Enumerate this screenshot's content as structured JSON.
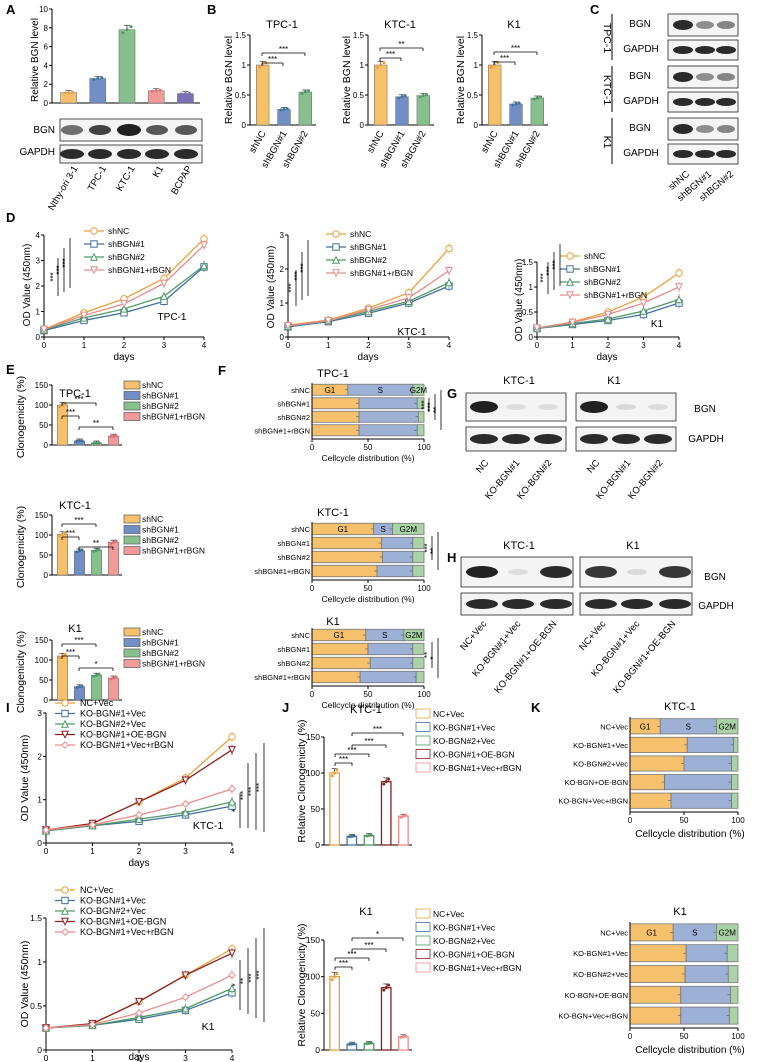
{
  "colors": {
    "shnc": "#f7c06a",
    "sh1": "#6f8fc6",
    "sh2": "#86c08c",
    "rbgn": "#f29a9a",
    "orange": "#e8a03c",
    "blue": "#41729f",
    "green": "#4f9a64",
    "darkred": "#8b1e1e",
    "pink": "#ee8b8b",
    "pinkline": "#e48c8c",
    "purple": "#7c6fb4",
    "teal": "#4aa6a0",
    "red": "#e07070",
    "g1": "#f6c16c",
    "s": "#9db0d6",
    "g2m": "#a9d3a5"
  },
  "panels": {
    "A": "A",
    "B": "B",
    "C": "C",
    "D": "D",
    "E": "E",
    "F": "F",
    "G": "G",
    "H": "H",
    "I": "I",
    "J": "J",
    "K": "K"
  },
  "blot_labels": {
    "bgn": "BGN",
    "gapdh": "GAPDH"
  },
  "sig": {
    "s1": "*",
    "s2": "**",
    "s3": "***"
  },
  "ylabels": {
    "relative_bgn": "Relative BGN level",
    "od": "OD Value (450nm)",
    "clono": "Clonogenicity (%)",
    "rel_clono": "Relative Clonogenicity (%)"
  },
  "xlabels": {
    "days": "days",
    "cellcycle": "Cellcycle distribution (%)"
  },
  "phase_labels": {
    "g1": "G1",
    "s": "S",
    "g2m": "G2M"
  },
  "cell_lines": {
    "tpc": "TPC-1",
    "ktc": "KTC-1",
    "k1": "K1",
    "nthy": "Nthy-ori 3-1",
    "bcpap": "BCPAP"
  },
  "group_labels": {
    "shnc": "shNC",
    "sh1": "shBGN#1",
    "sh2": "shBGN#2",
    "sh1r": "shBGN#1+rBGN",
    "nc": "NC",
    "ko1": "KO-BGN#1",
    "ko2": "KO-BGN#2",
    "ncvec": "NC+Vec",
    "ko1vec": "KO-BGN#1+Vec",
    "ko2vec": "KO-BGN#2+Vec",
    "ko1oe": "KO-BGN#1+OE-BGN",
    "ko1vecr": "KO-BGN#1+Vec+rBGN",
    "kooe": "KO-BGN+OE-BGN",
    "kovecr": "KO-BGN+Vec+rBGN"
  },
  "chart_data": [
    {
      "id": "A",
      "type": "bar",
      "categories": [
        "Nthy-ori 3-1",
        "TPC-1",
        "KTC-1",
        "K1",
        "BCPAP"
      ],
      "values": [
        1.1,
        2.6,
        7.8,
        1.3,
        1.0
      ],
      "ylabel": "Relative BGN level",
      "ylim": [
        0,
        10
      ]
    },
    {
      "id": "B-TPC-1",
      "type": "bar",
      "title": "TPC-1",
      "categories": [
        "shNC",
        "shBGN#1",
        "shBGN#2"
      ],
      "values": [
        1.0,
        0.26,
        0.55
      ],
      "ylim": [
        0,
        1.5
      ]
    },
    {
      "id": "B-KTC-1",
      "type": "bar",
      "title": "KTC-1",
      "categories": [
        "shNC",
        "shBGN#1",
        "shBGN#2"
      ],
      "values": [
        1.0,
        0.47,
        0.49
      ],
      "ylim": [
        0,
        1.5
      ]
    },
    {
      "id": "B-K1",
      "type": "bar",
      "title": "K1",
      "categories": [
        "shNC",
        "shBGN#1",
        "shBGN#2"
      ],
      "values": [
        1.0,
        0.35,
        0.45
      ],
      "ylim": [
        0,
        1.5
      ]
    },
    {
      "id": "D-TPC-1",
      "type": "line",
      "x": [
        0,
        1,
        2,
        3,
        4
      ],
      "series": [
        {
          "name": "shNC",
          "values": [
            0.3,
            0.95,
            1.5,
            2.3,
            3.85
          ]
        },
        {
          "name": "shBGN#1",
          "values": [
            0.25,
            0.65,
            0.95,
            1.4,
            2.75
          ]
        },
        {
          "name": "shBGN#2",
          "values": [
            0.28,
            0.75,
            1.1,
            1.6,
            2.8
          ]
        },
        {
          "name": "shBGN#1+rBGN",
          "values": [
            0.3,
            0.85,
            1.3,
            2.1,
            3.6
          ]
        }
      ],
      "ylim": [
        0,
        4
      ]
    },
    {
      "id": "D-KTC-1",
      "type": "line",
      "x": [
        0,
        1,
        2,
        3,
        4
      ],
      "series": [
        {
          "name": "shNC",
          "values": [
            0.35,
            0.5,
            0.85,
            1.3,
            2.6
          ]
        },
        {
          "name": "shBGN#1",
          "values": [
            0.3,
            0.45,
            0.7,
            1.0,
            1.5
          ]
        },
        {
          "name": "shBGN#2",
          "values": [
            0.32,
            0.48,
            0.75,
            1.05,
            1.6
          ]
        },
        {
          "name": "shBGN#1+rBGN",
          "values": [
            0.33,
            0.48,
            0.8,
            1.15,
            1.95
          ]
        }
      ],
      "ylim": [
        0,
        3
      ]
    },
    {
      "id": "D-K1",
      "type": "line",
      "x": [
        0,
        1,
        2,
        3,
        4
      ],
      "series": [
        {
          "name": "shNC",
          "values": [
            0.18,
            0.3,
            0.5,
            0.8,
            1.28
          ]
        },
        {
          "name": "shBGN#1",
          "values": [
            0.17,
            0.25,
            0.33,
            0.45,
            0.68
          ]
        },
        {
          "name": "shBGN#2",
          "values": [
            0.17,
            0.27,
            0.36,
            0.52,
            0.75
          ]
        },
        {
          "name": "shBGN#1+rBGN",
          "values": [
            0.18,
            0.29,
            0.45,
            0.68,
            1.0
          ]
        }
      ],
      "ylim": [
        0,
        1.5
      ]
    },
    {
      "id": "E-TPC-1",
      "type": "bar",
      "categories": [
        "shNC",
        "shBGN#1",
        "shBGN#2",
        "shBGN#1+rBGN"
      ],
      "values": [
        100,
        10,
        5,
        22
      ],
      "ylim": [
        0,
        150
      ]
    },
    {
      "id": "E-KTC-1",
      "type": "bar",
      "categories": [
        "shNC",
        "shBGN#1",
        "shBGN#2",
        "shBGN#1+rBGN"
      ],
      "values": [
        102,
        60,
        62,
        82
      ],
      "ylim": [
        0,
        150
      ]
    },
    {
      "id": "E-K1",
      "type": "bar",
      "categories": [
        "shNC",
        "shBGN#1",
        "shBGN#2",
        "shBGN#1+rBGN"
      ],
      "values": [
        110,
        33,
        62,
        55
      ],
      "ylim": [
        0,
        150
      ]
    },
    {
      "id": "F-TPC-1",
      "type": "bar",
      "orientation": "stacked-horizontal",
      "categories": [
        "shNC",
        "shBGN#1",
        "shBGN#2",
        "shBGN#1+rBGN"
      ],
      "series": [
        {
          "name": "G1",
          "values": [
            32,
            42,
            42,
            42
          ]
        },
        {
          "name": "S",
          "values": [
            58,
            52,
            53,
            52
          ]
        },
        {
          "name": "G2M",
          "values": [
            10,
            6,
            5,
            6
          ]
        }
      ],
      "xlim": [
        0,
        100
      ]
    },
    {
      "id": "F-KTC-1",
      "type": "bar",
      "orientation": "stacked-horizontal",
      "categories": [
        "shNC",
        "shBGN#1",
        "shBGN#2",
        "shBGN#1+rBGN"
      ],
      "series": [
        {
          "name": "G1",
          "values": [
            55,
            62,
            63,
            58
          ]
        },
        {
          "name": "S",
          "values": [
            17,
            28,
            27,
            32
          ]
        },
        {
          "name": "G2M",
          "values": [
            28,
            10,
            10,
            10
          ]
        }
      ],
      "xlim": [
        0,
        100
      ]
    },
    {
      "id": "F-K1",
      "type": "bar",
      "orientation": "stacked-horizontal",
      "categories": [
        "shNC",
        "shBGN#1",
        "shBGN#2",
        "shBGN#1+rBGN"
      ],
      "series": [
        {
          "name": "G1",
          "values": [
            48,
            50,
            52,
            43
          ]
        },
        {
          "name": "S",
          "values": [
            34,
            40,
            38,
            50
          ]
        },
        {
          "name": "G2M",
          "values": [
            18,
            10,
            10,
            7
          ]
        }
      ],
      "xlim": [
        0,
        100
      ]
    },
    {
      "id": "I-KTC-1",
      "type": "line",
      "x": [
        0,
        1,
        2,
        3,
        4
      ],
      "series": [
        {
          "name": "NC+Vec",
          "values": [
            0.3,
            0.45,
            0.95,
            1.5,
            2.45
          ]
        },
        {
          "name": "KO-BGN#1+Vec",
          "values": [
            0.28,
            0.4,
            0.5,
            0.65,
            0.85
          ]
        },
        {
          "name": "KO-BGN#2+Vec",
          "values": [
            0.28,
            0.4,
            0.55,
            0.7,
            0.95
          ]
        },
        {
          "name": "KO-BGN#1+OE-BGN",
          "values": [
            0.3,
            0.45,
            0.95,
            1.45,
            2.15
          ]
        },
        {
          "name": "KO-BGN#1+Vec+rBGN",
          "values": [
            0.3,
            0.42,
            0.65,
            0.9,
            1.25
          ]
        }
      ],
      "ylim": [
        0,
        3
      ]
    },
    {
      "id": "I-K1",
      "type": "line",
      "x": [
        0,
        1,
        2,
        3,
        4
      ],
      "series": [
        {
          "name": "NC+Vec",
          "values": [
            0.25,
            0.3,
            0.55,
            0.85,
            1.15
          ]
        },
        {
          "name": "KO-BGN#1+Vec",
          "values": [
            0.25,
            0.28,
            0.35,
            0.45,
            0.65
          ]
        },
        {
          "name": "KO-BGN#2+Vec",
          "values": [
            0.25,
            0.28,
            0.37,
            0.47,
            0.7
          ]
        },
        {
          "name": "KO-BGN#1+OE-BGN",
          "values": [
            0.25,
            0.3,
            0.55,
            0.85,
            1.1
          ]
        },
        {
          "name": "KO-BGN#1+Vec+rBGN",
          "values": [
            0.25,
            0.29,
            0.42,
            0.6,
            0.85
          ]
        }
      ],
      "ylim": [
        0,
        1.5
      ]
    },
    {
      "id": "J-KTC-1",
      "type": "bar",
      "title": "KTC-1",
      "categories": [
        "NC+Vec",
        "KO-BGN#1+Vec",
        "KO-BGN#2+Vec",
        "KO-BGN#1+OE-BGN",
        "KO-BGN#1+Vec+rBGN"
      ],
      "values": [
        100,
        12,
        13,
        88,
        40
      ],
      "ylim": [
        0,
        150
      ]
    },
    {
      "id": "J-K1",
      "type": "bar",
      "title": "K1",
      "categories": [
        "NC+Vec",
        "KO-BGN#1+Vec",
        "KO-BGN#2+Vec",
        "KO-BGN#1+OE-BGN",
        "KO-BGN#1+Vec+rBGN"
      ],
      "values": [
        100,
        8,
        9,
        85,
        18
      ],
      "ylim": [
        0,
        150
      ]
    },
    {
      "id": "K-KTC-1",
      "type": "bar",
      "orientation": "stacked-horizontal",
      "categories": [
        "NC+Vec",
        "KO-BGN#1+Vec",
        "KO-BGN#2+Vec",
        "KO-BGN+OE-BGN",
        "KO-BGN+Vec+rBGN"
      ],
      "series": [
        {
          "name": "G1",
          "values": [
            28,
            53,
            50,
            32,
            38
          ]
        },
        {
          "name": "S",
          "values": [
            52,
            43,
            44,
            62,
            56
          ]
        },
        {
          "name": "G2M",
          "values": [
            20,
            4,
            6,
            6,
            6
          ]
        }
      ],
      "xlim": [
        0,
        100
      ]
    },
    {
      "id": "K-K1",
      "type": "bar",
      "orientation": "stacked-horizontal",
      "categories": [
        "NC+Vec",
        "KO-BGN#1+Vec",
        "KO-BGN#2+Vec",
        "KO-BGN+OE-BGN",
        "KO-BGN+Vec+rBGN"
      ],
      "series": [
        {
          "name": "G1",
          "values": [
            40,
            52,
            51,
            47,
            47
          ]
        },
        {
          "name": "S",
          "values": [
            40,
            38,
            40,
            46,
            45
          ]
        },
        {
          "name": "G2M",
          "values": [
            20,
            10,
            9,
            7,
            8
          ]
        }
      ],
      "xlim": [
        0,
        100
      ]
    }
  ]
}
